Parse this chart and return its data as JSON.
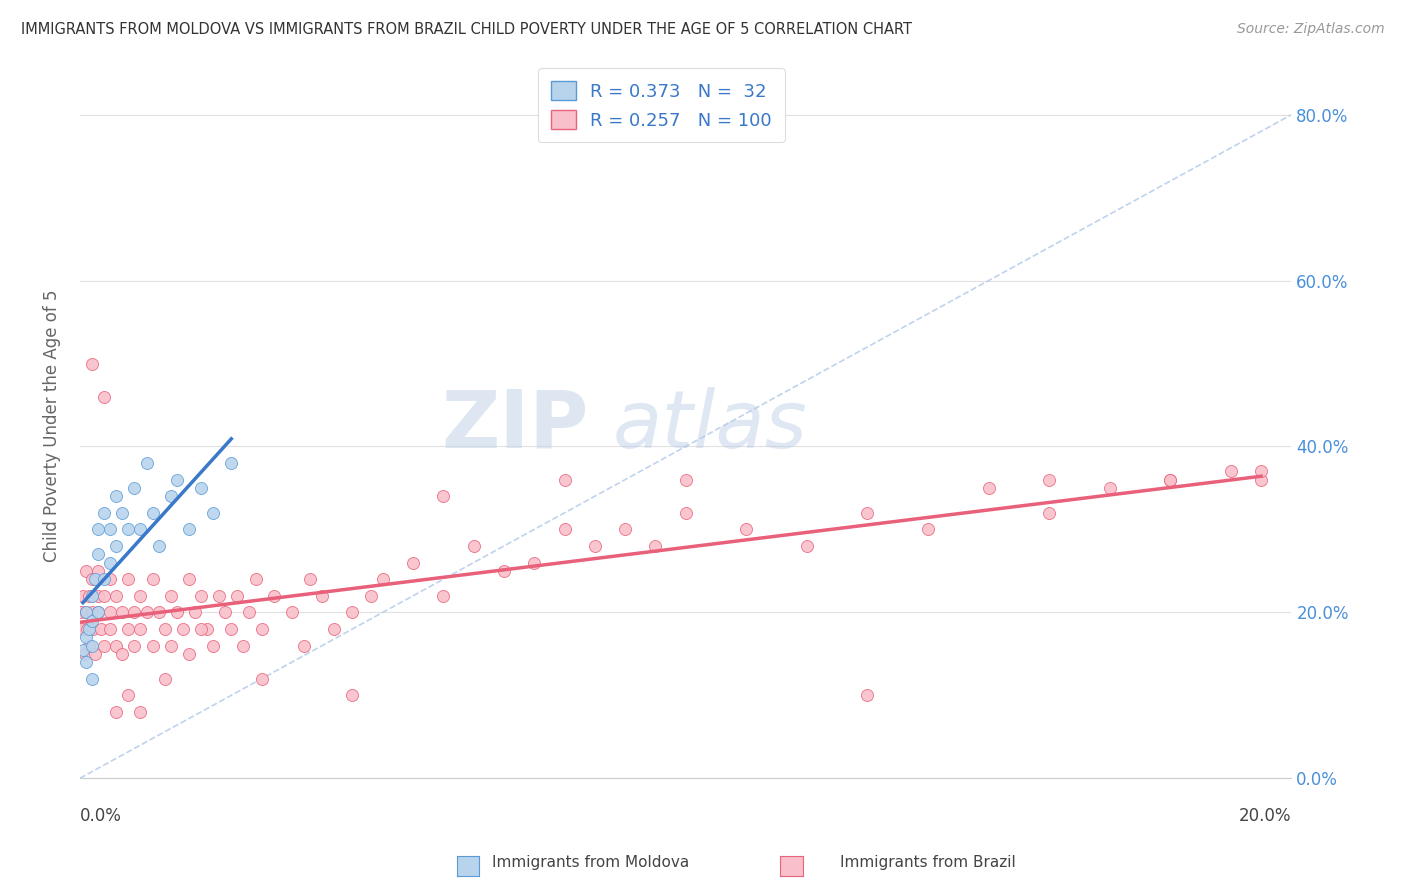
{
  "title": "IMMIGRANTS FROM MOLDOVA VS IMMIGRANTS FROM BRAZIL CHILD POVERTY UNDER THE AGE OF 5 CORRELATION CHART",
  "source": "Source: ZipAtlas.com",
  "ylabel": "Child Poverty Under the Age of 5",
  "xlim": [
    0.0,
    0.2
  ],
  "ylim": [
    0.0,
    0.85
  ],
  "yticks": [
    0.0,
    0.2,
    0.4,
    0.6,
    0.8
  ],
  "ytick_labels_right": [
    "0.0%",
    "20.0%",
    "40.0%",
    "60.0%",
    "80.0%"
  ],
  "moldova_fill_color": "#b8d4ed",
  "moldova_edge_color": "#5b9bd5",
  "brazil_fill_color": "#f9c0cb",
  "brazil_edge_color": "#e8627a",
  "moldova_line_color": "#3a78c9",
  "brazil_line_color": "#e8607a",
  "ref_line_color": "#b0c8e8",
  "R_moldova": 0.373,
  "N_moldova": 32,
  "R_brazil": 0.257,
  "N_brazil": 100,
  "legend_label_moldova": "Immigrants from Moldova",
  "legend_label_brazil": "Immigrants from Brazil",
  "watermark_zip": "ZIP",
  "watermark_atlas": "atlas",
  "moldova_scatter_x": [
    0.0005,
    0.001,
    0.001,
    0.001,
    0.0015,
    0.002,
    0.002,
    0.002,
    0.002,
    0.0025,
    0.003,
    0.003,
    0.003,
    0.004,
    0.004,
    0.005,
    0.005,
    0.006,
    0.006,
    0.007,
    0.008,
    0.009,
    0.01,
    0.011,
    0.012,
    0.013,
    0.015,
    0.016,
    0.018,
    0.02,
    0.022,
    0.025
  ],
  "moldova_scatter_y": [
    0.155,
    0.14,
    0.17,
    0.2,
    0.18,
    0.12,
    0.16,
    0.19,
    0.22,
    0.24,
    0.2,
    0.27,
    0.3,
    0.24,
    0.32,
    0.26,
    0.3,
    0.28,
    0.34,
    0.32,
    0.3,
    0.35,
    0.3,
    0.38,
    0.32,
    0.28,
    0.34,
    0.36,
    0.3,
    0.35,
    0.32,
    0.38
  ],
  "brazil_scatter_x": [
    0.0002,
    0.0004,
    0.0005,
    0.0008,
    0.001,
    0.001,
    0.0012,
    0.0015,
    0.0015,
    0.002,
    0.002,
    0.0022,
    0.0025,
    0.003,
    0.003,
    0.003,
    0.0035,
    0.004,
    0.004,
    0.005,
    0.005,
    0.005,
    0.006,
    0.006,
    0.007,
    0.007,
    0.008,
    0.008,
    0.009,
    0.009,
    0.01,
    0.01,
    0.011,
    0.012,
    0.012,
    0.013,
    0.014,
    0.015,
    0.015,
    0.016,
    0.017,
    0.018,
    0.018,
    0.019,
    0.02,
    0.021,
    0.022,
    0.023,
    0.024,
    0.025,
    0.026,
    0.027,
    0.028,
    0.029,
    0.03,
    0.032,
    0.035,
    0.037,
    0.038,
    0.04,
    0.042,
    0.045,
    0.048,
    0.05,
    0.055,
    0.06,
    0.065,
    0.07,
    0.075,
    0.08,
    0.085,
    0.09,
    0.095,
    0.1,
    0.11,
    0.12,
    0.13,
    0.14,
    0.15,
    0.16,
    0.17,
    0.18,
    0.19,
    0.195,
    0.002,
    0.004,
    0.006,
    0.008,
    0.01,
    0.014,
    0.02,
    0.03,
    0.045,
    0.06,
    0.08,
    0.1,
    0.13,
    0.16,
    0.18,
    0.195
  ],
  "brazil_scatter_y": [
    0.2,
    0.18,
    0.22,
    0.15,
    0.2,
    0.25,
    0.18,
    0.22,
    0.16,
    0.24,
    0.2,
    0.18,
    0.15,
    0.22,
    0.2,
    0.25,
    0.18,
    0.22,
    0.16,
    0.2,
    0.18,
    0.24,
    0.16,
    0.22,
    0.2,
    0.15,
    0.18,
    0.24,
    0.2,
    0.16,
    0.22,
    0.18,
    0.2,
    0.16,
    0.24,
    0.2,
    0.18,
    0.22,
    0.16,
    0.2,
    0.18,
    0.15,
    0.24,
    0.2,
    0.22,
    0.18,
    0.16,
    0.22,
    0.2,
    0.18,
    0.22,
    0.16,
    0.2,
    0.24,
    0.18,
    0.22,
    0.2,
    0.16,
    0.24,
    0.22,
    0.18,
    0.2,
    0.22,
    0.24,
    0.26,
    0.22,
    0.28,
    0.25,
    0.26,
    0.3,
    0.28,
    0.3,
    0.28,
    0.32,
    0.3,
    0.28,
    0.32,
    0.3,
    0.35,
    0.32,
    0.35,
    0.36,
    0.37,
    0.36,
    0.5,
    0.46,
    0.08,
    0.1,
    0.08,
    0.12,
    0.18,
    0.12,
    0.1,
    0.34,
    0.36,
    0.36,
    0.1,
    0.36,
    0.36,
    0.37
  ]
}
